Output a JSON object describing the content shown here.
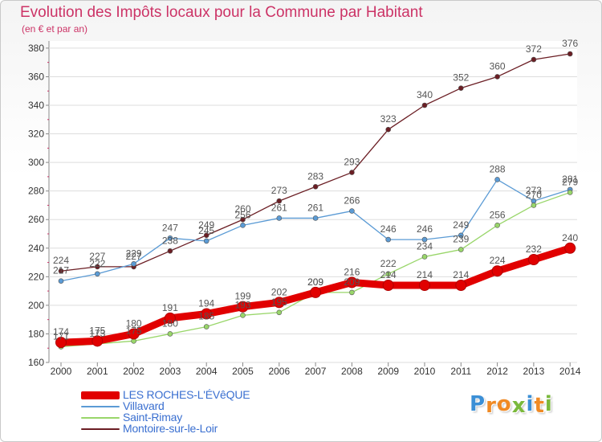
{
  "title": "Evolution des Impôts locaux pour la Commune par Habitant",
  "subtitle": "(en € et par an)",
  "logo": {
    "letters": [
      "P",
      "r",
      "o",
      "x",
      "i",
      "t",
      "i"
    ],
    "colors": [
      "#3b8fd6",
      "#f08a24",
      "#f08a24",
      "#7ab93b",
      "#3b8fd6",
      "#f08a24",
      "#7ab93b"
    ]
  },
  "chart_data": {
    "type": "line",
    "title": "Evolution des Impôts locaux pour la Commune par Habitant",
    "subtitle": "(en € et par an)",
    "x": [
      "2000",
      "2001",
      "2002",
      "2003",
      "2004",
      "2005",
      "2006",
      "2007",
      "2008",
      "2009",
      "2010",
      "2011",
      "2012",
      "2013",
      "2014"
    ],
    "y_ticks": [
      "160",
      "180",
      "200",
      "220",
      "240",
      "260",
      "280",
      "300",
      "320",
      "340",
      "360",
      "380"
    ],
    "ylim": [
      160,
      385
    ],
    "grid": "horizontal",
    "legend_position": "bottom-left",
    "series": [
      {
        "name": "LES ROCHES-L'ÉVêQUE",
        "color": "#e10000",
        "values": [
          174,
          175,
          180,
          191,
          194,
          199,
          202,
          209,
          216,
          214,
          214,
          214,
          224,
          232,
          240
        ]
      },
      {
        "name": "Villavard",
        "color": "#5b9bd5",
        "values": [
          217,
          222,
          229,
          247,
          245,
          256,
          261,
          261,
          266,
          246,
          246,
          249,
          288,
          273,
          281
        ]
      },
      {
        "name": "Saint-Rimay",
        "color": "#99d66a",
        "values": [
          171,
          173,
          175,
          180,
          185,
          193,
          195,
          209,
          209,
          222,
          234,
          239,
          256,
          270,
          279
        ]
      },
      {
        "name": "Montoire-sur-le-Loir",
        "color": "#6b1e24",
        "values": [
          224,
          227,
          227,
          238,
          249,
          260,
          273,
          283,
          293,
          323,
          340,
          352,
          360,
          372,
          376
        ]
      }
    ]
  }
}
